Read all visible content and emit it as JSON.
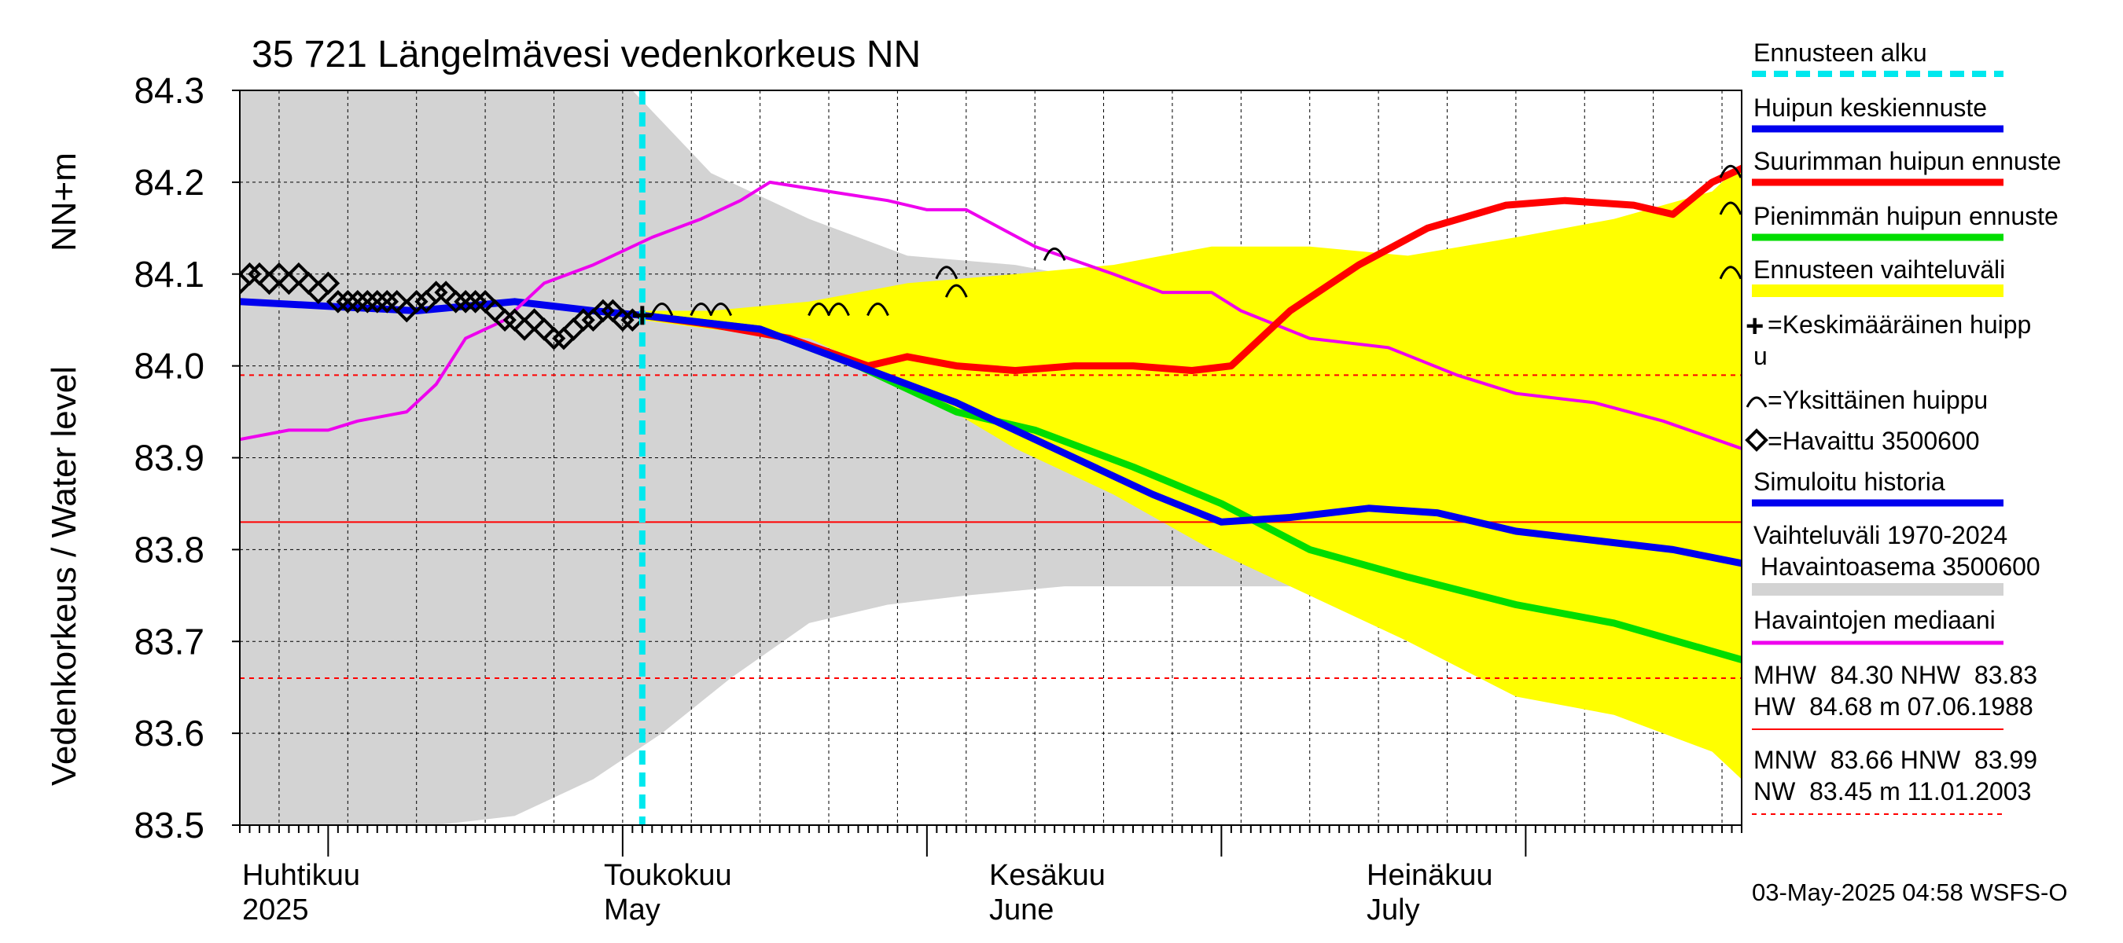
{
  "chart_data": {
    "type": "line",
    "title": "35 721 Längelmävesi vedenkorkeus NN",
    "ylabel_fi": "Vedenkorkeus / Water level",
    "ylabel_unit": "NN+m",
    "ylim": [
      83.5,
      84.3
    ],
    "y_ticks": [
      "84.3",
      "84.2",
      "84.1",
      "84.0",
      "83.9",
      "83.8",
      "83.7",
      "83.6",
      "83.5"
    ],
    "x_range": [
      "2025-03-23",
      "2025-08-23"
    ],
    "x_labels": [
      {
        "date": "2025-04-01",
        "line1": "Huhtikuu",
        "line2": "2025"
      },
      {
        "date": "2025-05-01",
        "line1": "Toukokuu",
        "line2": "May"
      },
      {
        "date": "2025-06-01",
        "line1": "Kesäkuu",
        "line2": "June"
      },
      {
        "date": "2025-07-01",
        "line1": "Heinäkuu",
        "line2": "July"
      }
    ],
    "forecast_start": "2025-05-03",
    "reference_lines": {
      "MHW": 84.3,
      "NHW": 83.83,
      "MNW": 83.66,
      "HNW": 83.99
    },
    "series": [
      {
        "name": "Havaittu 3500600",
        "kind": "observed_markers",
        "color": "#000000",
        "x": [
          "2025-03-23",
          "2025-03-24",
          "2025-03-25",
          "2025-03-26",
          "2025-03-27",
          "2025-03-28",
          "2025-03-29",
          "2025-03-30",
          "2025-03-31",
          "2025-04-01",
          "2025-04-02",
          "2025-04-03",
          "2025-04-04",
          "2025-04-05",
          "2025-04-06",
          "2025-04-07",
          "2025-04-08",
          "2025-04-09",
          "2025-04-10",
          "2025-04-11",
          "2025-04-12",
          "2025-04-13",
          "2025-04-14",
          "2025-04-15",
          "2025-04-16",
          "2025-04-17",
          "2025-04-18",
          "2025-04-19",
          "2025-04-20",
          "2025-04-21",
          "2025-04-22",
          "2025-04-23",
          "2025-04-24",
          "2025-04-25",
          "2025-04-26",
          "2025-04-27",
          "2025-04-28",
          "2025-04-29",
          "2025-04-30",
          "2025-05-01",
          "2025-05-02"
        ],
        "y": [
          84.09,
          84.1,
          84.1,
          84.09,
          84.1,
          84.09,
          84.1,
          84.09,
          84.08,
          84.09,
          84.07,
          84.07,
          84.07,
          84.07,
          84.07,
          84.07,
          84.07,
          84.06,
          84.07,
          84.07,
          84.08,
          84.08,
          84.07,
          84.07,
          84.07,
          84.07,
          84.06,
          84.05,
          84.05,
          84.04,
          84.05,
          84.04,
          84.03,
          84.03,
          84.04,
          84.05,
          84.05,
          84.06,
          84.06,
          84.05,
          84.05
        ]
      },
      {
        "name": "Ennusteen vaihteluväli",
        "kind": "band",
        "color": "#ffff00",
        "x": [
          "2025-05-03",
          "2025-05-10",
          "2025-05-20",
          "2025-05-30",
          "2025-06-10",
          "2025-06-20",
          "2025-06-30",
          "2025-07-10",
          "2025-07-20",
          "2025-07-31",
          "2025-08-10",
          "2025-08-20",
          "2025-08-23"
        ],
        "upper": [
          84.06,
          84.06,
          84.07,
          84.09,
          84.1,
          84.11,
          84.13,
          84.13,
          84.12,
          84.14,
          84.16,
          84.19,
          84.22
        ],
        "lower": [
          84.05,
          84.04,
          84.03,
          83.98,
          83.91,
          83.86,
          83.8,
          83.75,
          83.7,
          83.64,
          83.62,
          83.58,
          83.55
        ]
      },
      {
        "name": "Simuloitu historia",
        "kind": "line",
        "color": "#0000ee",
        "x": [
          "2025-03-23",
          "2025-04-01",
          "2025-04-10",
          "2025-04-20",
          "2025-04-28",
          "2025-05-03"
        ],
        "y": [
          84.07,
          84.065,
          84.06,
          84.07,
          84.06,
          84.055
        ]
      },
      {
        "name": "Havaintojen mediaani",
        "kind": "line",
        "color": "#ee00ee",
        "x": [
          "2025-03-23",
          "2025-03-28",
          "2025-04-01",
          "2025-04-04",
          "2025-04-09",
          "2025-04-12",
          "2025-04-15",
          "2025-04-19",
          "2025-04-23",
          "2025-04-28",
          "2025-05-04",
          "2025-05-09",
          "2025-05-13",
          "2025-05-16",
          "2025-05-22",
          "2025-05-28",
          "2025-06-01",
          "2025-06-05",
          "2025-06-12",
          "2025-06-20",
          "2025-06-25",
          "2025-06-30",
          "2025-07-03",
          "2025-07-10",
          "2025-07-18",
          "2025-07-25",
          "2025-07-31",
          "2025-08-08",
          "2025-08-15",
          "2025-08-23"
        ],
        "y": [
          83.92,
          83.93,
          83.93,
          83.94,
          83.95,
          83.98,
          84.03,
          84.05,
          84.09,
          84.11,
          84.14,
          84.16,
          84.18,
          84.2,
          84.19,
          84.18,
          84.17,
          84.17,
          84.13,
          84.1,
          84.08,
          84.08,
          84.06,
          84.03,
          84.02,
          83.99,
          83.97,
          83.96,
          83.94,
          83.91
        ]
      },
      {
        "name": "Suurimman huipun ennuste",
        "kind": "line",
        "color": "#ff0000",
        "x": [
          "2025-05-03",
          "2025-05-10",
          "2025-05-18",
          "2025-05-26",
          "2025-05-30",
          "2025-06-04",
          "2025-06-10",
          "2025-06-16",
          "2025-06-22",
          "2025-06-28",
          "2025-07-02",
          "2025-07-08",
          "2025-07-15",
          "2025-07-22",
          "2025-07-30",
          "2025-08-05",
          "2025-08-12",
          "2025-08-16",
          "2025-08-20",
          "2025-08-23"
        ],
        "y": [
          84.055,
          84.045,
          84.03,
          84.0,
          84.01,
          84.0,
          83.995,
          84.0,
          84.0,
          83.995,
          84.0,
          84.06,
          84.11,
          84.15,
          84.175,
          84.18,
          84.175,
          84.165,
          84.2,
          84.215
        ]
      },
      {
        "name": "Pienimmän huipun ennuste",
        "kind": "line",
        "color": "#00dd00",
        "x": [
          "2025-05-03",
          "2025-05-15",
          "2025-05-25",
          "2025-06-04",
          "2025-06-12",
          "2025-06-22",
          "2025-07-01",
          "2025-07-10",
          "2025-07-20",
          "2025-07-31",
          "2025-08-10",
          "2025-08-23"
        ],
        "y": [
          84.055,
          84.04,
          84.0,
          83.95,
          83.93,
          83.89,
          83.85,
          83.8,
          83.77,
          83.74,
          83.72,
          83.68
        ]
      },
      {
        "name": "Huipun keskiennuste",
        "kind": "line",
        "color": "#0000ee",
        "x": [
          "2025-05-03",
          "2025-05-15",
          "2025-05-25",
          "2025-06-04",
          "2025-06-14",
          "2025-06-24",
          "2025-07-01",
          "2025-07-08",
          "2025-07-16",
          "2025-07-23",
          "2025-07-31",
          "2025-08-08",
          "2025-08-16",
          "2025-08-23"
        ],
        "y": [
          84.055,
          84.04,
          84.0,
          83.96,
          83.91,
          83.86,
          83.83,
          83.835,
          83.845,
          83.84,
          83.82,
          83.81,
          83.8,
          83.785
        ]
      }
    ],
    "single_peaks": {
      "x": [
        "2025-05-05",
        "2025-05-09",
        "2025-05-11",
        "2025-05-21",
        "2025-05-23",
        "2025-05-27",
        "2025-06-03",
        "2025-06-04",
        "2025-06-14",
        "2025-08-23",
        "2025-08-22",
        "2025-08-23"
      ],
      "y": [
        84.06,
        84.06,
        84.06,
        84.06,
        84.06,
        84.06,
        84.1,
        84.08,
        84.12,
        84.21,
        84.17,
        84.1
      ]
    },
    "legend": {
      "placement": "right",
      "items": [
        {
          "label": "Ennusteen alku",
          "swatch": "dashed",
          "color": "#00e8ee"
        },
        {
          "label": "Huipun keskiennuste",
          "swatch": "line",
          "color": "#0000ee"
        },
        {
          "label": "Suurimman huipun ennuste",
          "swatch": "line",
          "color": "#ff0000"
        },
        {
          "label": "Pienimmän huipun ennuste",
          "swatch": "line",
          "color": "#00dd00"
        },
        {
          "label": "Ennusteen vaihteluväli",
          "swatch": "band",
          "color": "#ffff00"
        },
        {
          "label": "=Keskimääräinen huipp",
          "label2": "u",
          "swatch": "plus"
        },
        {
          "label": "=Yksittäinen huippu",
          "swatch": "arc"
        },
        {
          "label": "=Havaittu 3500600",
          "swatch": "diamond"
        },
        {
          "label": "Simuloitu historia",
          "swatch": "line",
          "color": "#0000ee"
        },
        {
          "label": "Vaihteluväli 1970-2024",
          "label2": " Havaintoasema 3500600",
          "swatch": "band",
          "color": "#d3d3d3"
        },
        {
          "label": "Havaintojen mediaani",
          "swatch": "line",
          "color": "#ee00ee"
        },
        {
          "label": "MHW  84.30 NHW  83.83",
          "label2": "HW  84.68 m 07.06.1988",
          "swatch": "solid-thin",
          "color": "#ff0000"
        },
        {
          "label": "MNW  83.66 HNW  83.99",
          "label2": "NW  83.45 m 11.01.2003",
          "swatch": "dashed-thin",
          "color": "#ff0000"
        }
      ]
    },
    "footer": "03-May-2025 04:58 WSFS-O"
  }
}
